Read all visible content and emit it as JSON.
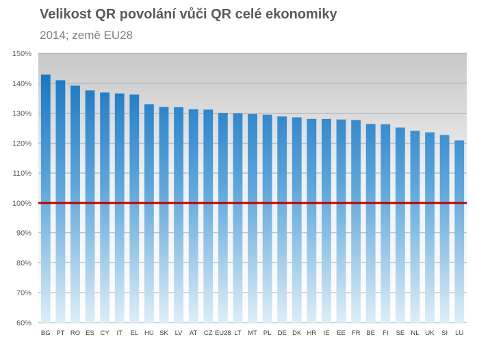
{
  "chart_data": {
    "type": "bar",
    "title": "Velikost QR povolání vůči QR celé ekonomiky",
    "subtitle": "2014; země EU28",
    "categories": [
      "BG",
      "PT",
      "RO",
      "ES",
      "CY",
      "IT",
      "EL",
      "HU",
      "SK",
      "LV",
      "AT",
      "CZ",
      "EU28",
      "LT",
      "MT",
      "PL",
      "DE",
      "DK",
      "HR",
      "IE",
      "EE",
      "FR",
      "BE",
      "FI",
      "SE",
      "NL",
      "UK",
      "SI",
      "LU"
    ],
    "values": [
      142.9,
      141.0,
      139.2,
      137.6,
      136.9,
      136.6,
      136.2,
      133.0,
      132.1,
      132.0,
      131.3,
      131.2,
      130.1,
      129.9,
      129.7,
      129.5,
      128.9,
      128.6,
      128.1,
      128.1,
      127.9,
      127.7,
      126.4,
      126.3,
      125.2,
      124.1,
      123.6,
      122.7,
      120.9
    ],
    "ylim": [
      60,
      150
    ],
    "yticks": [
      "60%",
      "70%",
      "80%",
      "90%",
      "100%",
      "110%",
      "120%",
      "130%",
      "140%",
      "150%"
    ],
    "reference_line": 100,
    "grid": true,
    "colors": {
      "bar_top": "#0b6fc1",
      "bar_bottom": "#ddeef8",
      "reference_line": "#c00000",
      "plot_bg_top": "#c8c8c8",
      "plot_bg_bottom": "#ffffff",
      "gridline": "#a6a6a6"
    }
  }
}
